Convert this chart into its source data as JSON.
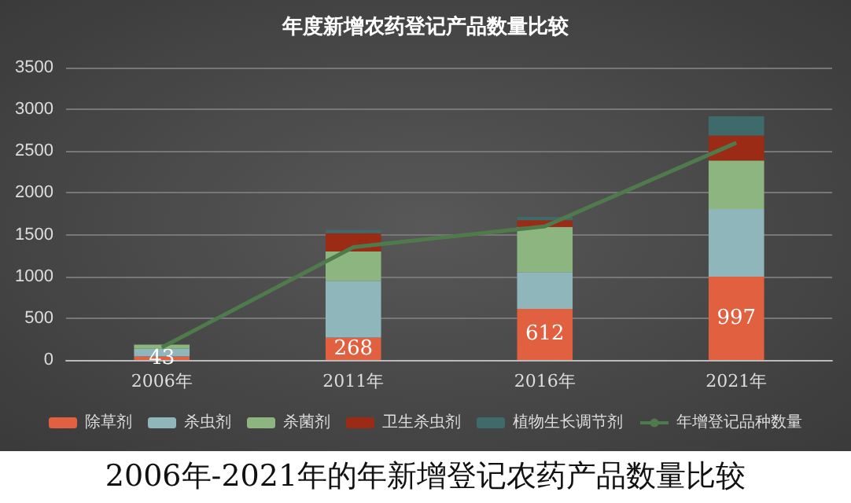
{
  "chart_data": {
    "type": "bar",
    "title": "年度新增农药登记产品数量比较",
    "categories": [
      "2006年",
      "2011年",
      "2016年",
      "2021年"
    ],
    "stacked": true,
    "series": [
      {
        "name": "除草剂",
        "color": "#e0603f",
        "values": [
          43,
          268,
          612,
          997
        ],
        "value_labels": [
          "43",
          "268",
          "612",
          "997"
        ]
      },
      {
        "name": "杀虫剂",
        "color": "#8fb6ba",
        "values": [
          90,
          680,
          440,
          810
        ]
      },
      {
        "name": "杀菌剂",
        "color": "#8db57f",
        "values": [
          50,
          350,
          540,
          580
        ]
      },
      {
        "name": "卫生杀虫剂",
        "color": "#9b2b15",
        "values": [
          0,
          220,
          80,
          300
        ]
      },
      {
        "name": "植物生长调节剂",
        "color": "#3e6a6b",
        "values": [
          0,
          40,
          40,
          230
        ]
      },
      {
        "name": "年增登记品种数量",
        "type": "line",
        "color": "#4f7a4c",
        "values": [
          150,
          1350,
          1600,
          2600
        ],
        "marker": "none"
      }
    ],
    "ylim": [
      0,
      3500
    ],
    "yticks": [
      0,
      500,
      1000,
      1500,
      2000,
      2500,
      3000,
      3500
    ],
    "grid": "y",
    "legend": "bottom",
    "annotations": [
      "2006年-2021年的年新增登记农药产品数量比较"
    ]
  }
}
